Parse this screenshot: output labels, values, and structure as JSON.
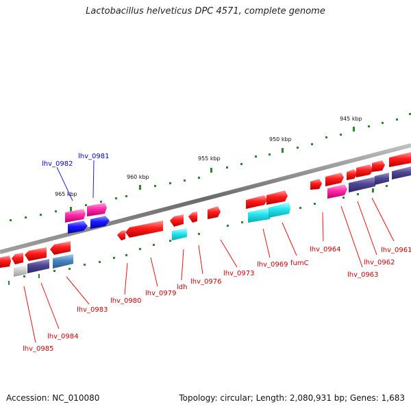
{
  "title": "Lactobacillus helveticus DPC 4571, complete genome",
  "footer": {
    "accession": "Accession: NC_010080",
    "summary": "Topology: circular; Length: 2,080,931 bp; Genes: 1,683"
  },
  "scale_labels": [
    "965 kbp",
    "960 kbp",
    "955 kbp",
    "950 kbp",
    "945 kbp"
  ],
  "gene_labels": [
    {
      "text": "lhv_0982",
      "color": "#0000cc"
    },
    {
      "text": "lhv_0981",
      "color": "#0000cc"
    },
    {
      "text": "lhv_0985",
      "color": "#cc0000"
    },
    {
      "text": "lhv_0984",
      "color": "#cc0000"
    },
    {
      "text": "lhv_0983",
      "color": "#cc0000"
    },
    {
      "text": "lhv_0980",
      "color": "#cc0000"
    },
    {
      "text": "lhv_0979",
      "color": "#cc0000"
    },
    {
      "text": "ldh",
      "color": "#cc0000"
    },
    {
      "text": "lhv_0976",
      "color": "#cc0000"
    },
    {
      "text": "lhv_0973",
      "color": "#cc0000"
    },
    {
      "text": "lhv_0969",
      "color": "#cc0000"
    },
    {
      "text": "fumC",
      "color": "#cc0000"
    },
    {
      "text": "lhv_0964",
      "color": "#cc0000"
    },
    {
      "text": "lhv_0963",
      "color": "#cc0000"
    },
    {
      "text": "lhv_0962",
      "color": "#cc0000"
    },
    {
      "text": "lhv_0961",
      "color": "#cc0000"
    }
  ],
  "colors": {
    "backbone": "#7a7a7a",
    "red_gene": "#ff1a1a",
    "magenta_gene": "#ff2aa8",
    "blue_gene": "#1a1aff",
    "cyan_gene": "#22e5f0",
    "purple_gene": "#4f4793",
    "steel_gene": "#4a86c0",
    "grey_gene": "#c8c8c8",
    "tick_green": "#2a8a2a"
  }
}
